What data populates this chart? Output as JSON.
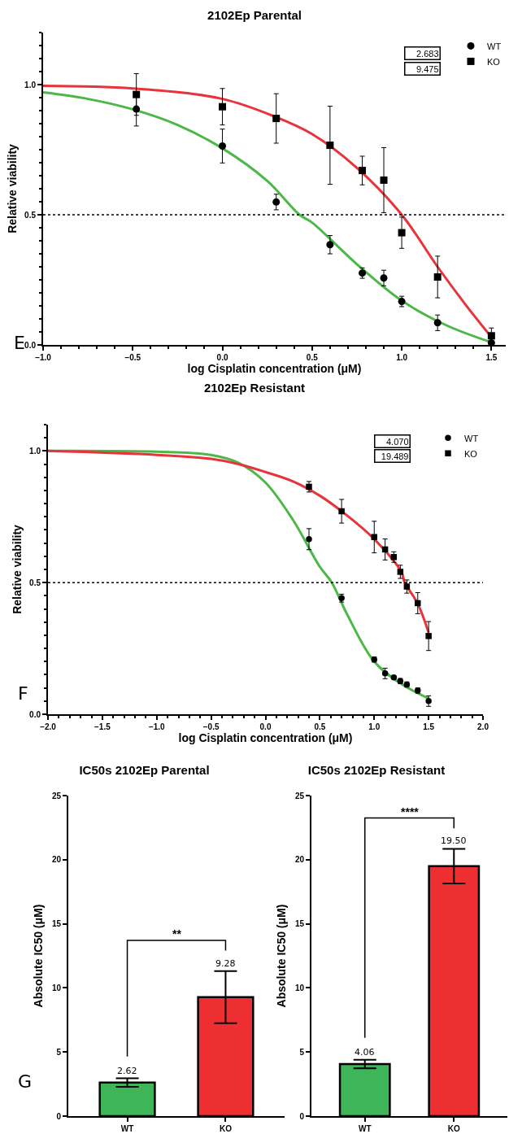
{
  "chart_data": [
    {
      "type": "scatter",
      "title": "2102Ep Parental",
      "xlabel": "log Cisplatin concentration (μM)",
      "ylabel": "Relative viability",
      "xlim": [
        -1,
        1.58
      ],
      "xticks": [
        {
          "value": -1,
          "label": "−1.0"
        },
        {
          "value": -0.5,
          "label": "−0.5"
        },
        {
          "value": 0,
          "label": "0.0"
        },
        {
          "value": 0.5,
          "label": "0.5"
        },
        {
          "value": 1,
          "label": "1.0"
        },
        {
          "value": 1.5,
          "label": "1.5"
        }
      ],
      "ylim": [
        0,
        1.2
      ],
      "yticks": [
        {
          "value": 0,
          "label": "0.0"
        },
        {
          "value": 0.5,
          "label": "0.5"
        },
        {
          "value": 1,
          "label": "1.0"
        }
      ],
      "legend": "top right",
      "annotations": [
        "E",
        "2.683",
        "9.475"
      ],
      "ref_lines": [
        {
          "axis": "y",
          "value": 0.5,
          "color": "#000000",
          "line_style": "dotted"
        }
      ],
      "series": [
        {
          "name": "WT",
          "type": "scatter",
          "marker": "circle",
          "color": "#000000",
          "x": [
            -0.48,
            0,
            0.3,
            0.6,
            0.78,
            0.9,
            1.0,
            1.2,
            1.5
          ],
          "values": [
            0.906,
            0.764,
            0.549,
            0.385,
            0.276,
            0.257,
            0.167,
            0.085,
            0.008
          ],
          "errors": [
            0.065,
            0.065,
            0.03,
            0.035,
            0.02,
            0.03,
            0.02,
            0.03,
            null
          ]
        },
        {
          "name": "KO",
          "type": "scatter",
          "marker": "square",
          "color": "#000000",
          "x": [
            -0.48,
            0,
            0.3,
            0.6,
            0.78,
            0.9,
            1.0,
            1.2,
            1.5
          ],
          "values": [
            0.962,
            0.915,
            0.87,
            0.767,
            0.67,
            0.633,
            0.431,
            0.261,
            0.035
          ],
          "errors": [
            0.08,
            0.07,
            0.095,
            0.15,
            0.055,
            0.125,
            0.06,
            0.08,
            0.03
          ]
        },
        {
          "type": "line",
          "marker": "none",
          "color": "#4cb848",
          "x": [
            -1,
            -0.75,
            -0.5,
            -0.25,
            0,
            0.25,
            0.43,
            0.5,
            0.75,
            1.0,
            1.25,
            1.5
          ],
          "values": [
            0.97,
            0.945,
            0.905,
            0.845,
            0.755,
            0.63,
            0.5,
            0.47,
            0.31,
            0.17,
            0.075,
            0.01
          ]
        },
        {
          "type": "line",
          "marker": "none",
          "color": "#e8333a",
          "x": [
            -1,
            -0.5,
            0,
            0.3,
            0.5,
            0.75,
            1.0,
            1.2,
            1.35,
            1.5
          ],
          "values": [
            0.995,
            0.985,
            0.945,
            0.875,
            0.81,
            0.68,
            0.5,
            0.3,
            0.16,
            0.03
          ]
        }
      ]
    },
    {
      "type": "scatter",
      "title": "2102Ep Resistant",
      "xlabel": "log Cisplatin concentration (μM)",
      "ylabel": "Relative viability",
      "xlim": [
        -2,
        2
      ],
      "xticks": [
        {
          "value": -2,
          "label": "−2.0"
        },
        {
          "value": -1.5,
          "label": "−1.5"
        },
        {
          "value": -1,
          "label": "−1.0"
        },
        {
          "value": -0.5,
          "label": "−0.5"
        },
        {
          "value": 0,
          "label": "0.0"
        },
        {
          "value": 0.5,
          "label": "0.5"
        },
        {
          "value": 1,
          "label": "1.0"
        },
        {
          "value": 1.5,
          "label": "1.5"
        },
        {
          "value": 2,
          "label": "2.0"
        }
      ],
      "ylim": [
        0,
        1.1
      ],
      "yticks": [
        {
          "value": 0,
          "label": "0.0"
        },
        {
          "value": 0.5,
          "label": "0.5"
        },
        {
          "value": 1,
          "label": "1.0"
        }
      ],
      "legend": "top right",
      "annotations": [
        "F",
        "4.070",
        "19.489"
      ],
      "ref_lines": [
        {
          "axis": "y",
          "value": 0.5,
          "color": "#000000",
          "line_style": "dotted"
        }
      ],
      "series": [
        {
          "name": "WT",
          "type": "scatter",
          "marker": "circle",
          "color": "#000000",
          "x": [
            0.4,
            0.7,
            1.0,
            1.1,
            1.18,
            1.24,
            1.3,
            1.4,
            1.5
          ],
          "values": [
            0.665,
            0.441,
            0.208,
            0.155,
            0.14,
            0.126,
            0.113,
            0.09,
            0.05
          ],
          "errors": [
            0.04,
            0.015,
            0.01,
            0.02,
            0.005,
            0.01,
            0.01,
            0.01,
            0.02
          ]
        },
        {
          "name": "KO",
          "type": "scatter",
          "marker": "square",
          "color": "#000000",
          "x": [
            0.4,
            0.7,
            1.0,
            1.1,
            1.18,
            1.24,
            1.3,
            1.4,
            1.5
          ],
          "values": [
            0.864,
            0.771,
            0.673,
            0.626,
            0.597,
            0.541,
            0.485,
            0.422,
            0.297
          ],
          "errors": [
            0.02,
            0.045,
            0.06,
            0.04,
            0.02,
            0.025,
            0.025,
            0.04,
            0.055
          ]
        },
        {
          "type": "line",
          "marker": "none",
          "color": "#4cb848",
          "x": [
            -2,
            -1,
            -0.5,
            -0.25,
            0,
            0.25,
            0.5,
            0.61,
            0.75,
            1.0,
            1.25,
            1.5
          ],
          "values": [
            1.0,
            0.997,
            0.985,
            0.955,
            0.88,
            0.74,
            0.56,
            0.5,
            0.38,
            0.2,
            0.115,
            0.06
          ]
        },
        {
          "type": "line",
          "marker": "none",
          "color": "#e8333a",
          "x": [
            -2,
            -1,
            -0.5,
            -0.25,
            0,
            0.25,
            0.5,
            0.75,
            1.0,
            1.25,
            1.28,
            1.4,
            1.5
          ],
          "values": [
            1.0,
            0.985,
            0.97,
            0.95,
            0.92,
            0.885,
            0.83,
            0.755,
            0.665,
            0.54,
            0.5,
            0.42,
            0.31
          ]
        }
      ]
    },
    {
      "type": "bar",
      "title": "IC50s 2102Ep Parental",
      "ylabel": "Absolute IC50 (μM)",
      "categories": [
        "WT",
        "KO"
      ],
      "values": [
        2.62,
        9.28
      ],
      "colors": [
        "#3fb559",
        "#ee2f32"
      ],
      "errors": [
        0.33,
        2.03
      ],
      "value_labels": [
        "2.62",
        "9.28"
      ],
      "ylim": [
        0,
        25
      ],
      "yticks": [
        0,
        5,
        10,
        15,
        20,
        25
      ],
      "annotations": [
        "G",
        "**"
      ]
    },
    {
      "type": "bar",
      "title": "IC50s 2102Ep Resistant",
      "ylabel": "Absolute IC50 (μM)",
      "categories": [
        "WT",
        "KO"
      ],
      "values": [
        4.06,
        19.5
      ],
      "colors": [
        "#3fb559",
        "#ee2f32"
      ],
      "errors": [
        0.34,
        1.35
      ],
      "value_labels": [
        "4.06",
        "19.50"
      ],
      "ylim": [
        0,
        25
      ],
      "yticks": [
        0,
        5,
        10,
        15,
        20,
        25
      ],
      "annotations": [
        "****"
      ]
    }
  ]
}
